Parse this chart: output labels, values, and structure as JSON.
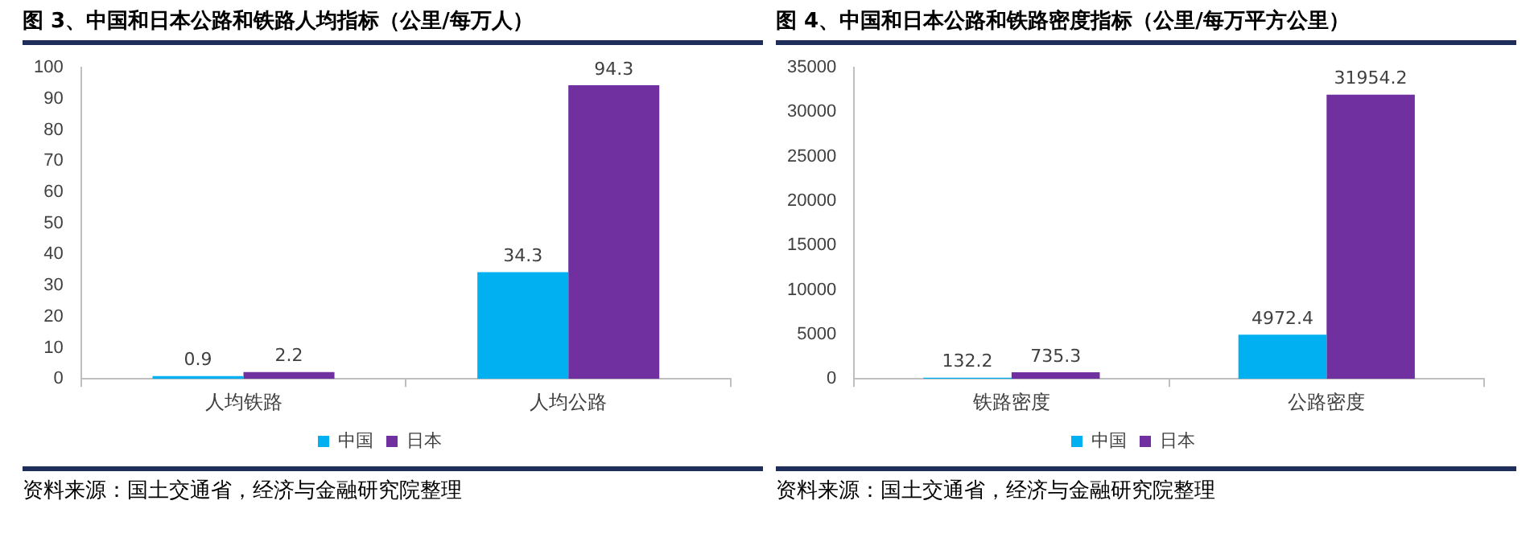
{
  "chart_data": [
    {
      "type": "bar",
      "title": "图 3、中国和日本公路和铁路人均指标（公里/每万人）",
      "categories": [
        "人均铁路",
        "人均公路"
      ],
      "series": [
        {
          "name": "中国",
          "color": "#00b0f0",
          "values": [
            0.9,
            34.3
          ]
        },
        {
          "name": "日本",
          "color": "#7030a0",
          "values": [
            2.2,
            94.3
          ]
        }
      ],
      "ylim": [
        0,
        100
      ],
      "yticks": [
        0,
        10,
        20,
        30,
        40,
        50,
        60,
        70,
        80,
        90,
        100
      ],
      "grid": false,
      "legend": "bottom",
      "data_labels": true,
      "annotations": [
        "资料来源：国土交通省，经济与金融研究院整理"
      ]
    },
    {
      "type": "bar",
      "title": "图 4、中国和日本公路和铁路密度指标（公里/每万平方公里）",
      "categories": [
        "铁路密度",
        "公路密度"
      ],
      "series": [
        {
          "name": "中国",
          "color": "#00b0f0",
          "values": [
            132.2,
            4972.4
          ]
        },
        {
          "name": "日本",
          "color": "#7030a0",
          "values": [
            735.3,
            31954.2
          ]
        }
      ],
      "ylim": [
        0,
        35000
      ],
      "yticks": [
        0,
        5000,
        10000,
        15000,
        20000,
        25000,
        30000,
        35000
      ],
      "grid": false,
      "legend": "bottom",
      "data_labels": true,
      "annotations": [
        "资料来源：国土交通省，经济与金融研究院整理"
      ]
    }
  ]
}
